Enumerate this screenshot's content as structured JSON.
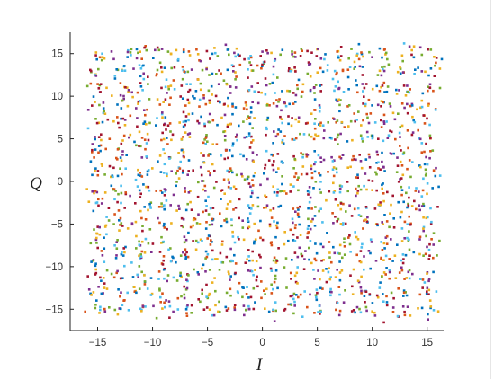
{
  "chart_data": {
    "type": "scatter",
    "title": "",
    "xlabel": "I",
    "ylabel": "Q",
    "xlim": [
      -17.5,
      16.5
    ],
    "ylim": [
      -17.5,
      17.5
    ],
    "x_ticks": [
      -15,
      -10,
      -5,
      0,
      5,
      10,
      15
    ],
    "y_ticks": [
      -15,
      -10,
      -5,
      0,
      5,
      10,
      15
    ],
    "x_tick_labels": [
      "−15",
      "−10",
      "−5",
      "0",
      "5",
      "10",
      "15"
    ],
    "y_tick_labels": [
      "−15",
      "−10",
      "−5",
      "0",
      "5",
      "10",
      "15"
    ],
    "grid": false,
    "legend": "none",
    "constellation": {
      "description_of_layout": "16x16 QAM constellation, noisy received symbols",
      "i_levels": [
        -15,
        -13,
        -11,
        -9,
        -7,
        -5,
        -3,
        -1,
        1,
        3,
        5,
        7,
        9,
        11,
        13,
        15
      ],
      "q_levels": [
        -15,
        -13,
        -11,
        -9,
        -7,
        -5,
        -3,
        -1,
        1,
        3,
        5,
        7,
        9,
        11,
        13,
        15
      ],
      "points_per_symbol": 8,
      "noise_spread": 0.55
    },
    "series_colors": [
      "#0072BD",
      "#D95319",
      "#EDB120",
      "#7E2F8E",
      "#77AC30",
      "#4DBEEE",
      "#A2142F"
    ]
  }
}
